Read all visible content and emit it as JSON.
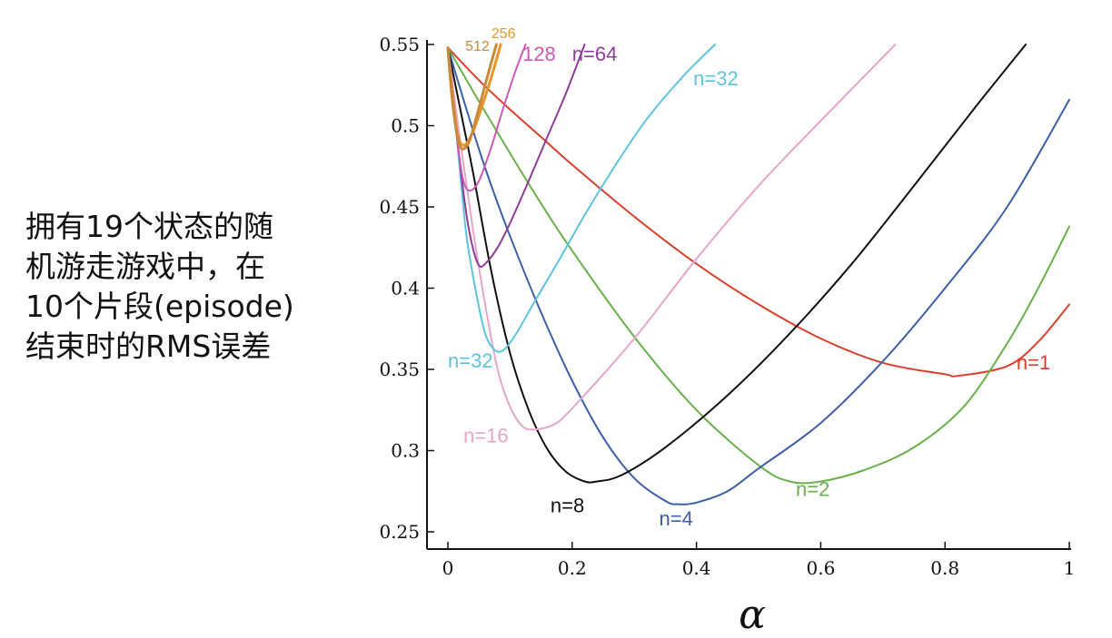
{
  "caption": {
    "line1": "拥有19个状态的随",
    "line2": "机游走游戏中，在",
    "line3": "10个片段(episode)",
    "line4": "结束时的RMS误差"
  },
  "chart_data": {
    "type": "line",
    "title": "",
    "xlabel": "α",
    "ylabel": "",
    "xlim": [
      0,
      1
    ],
    "ylim": [
      0.24,
      0.55
    ],
    "xticks": [
      0,
      0.2,
      0.4,
      0.6,
      0.8,
      1
    ],
    "xtick_labels": [
      "0",
      "0.2",
      "0.4",
      "0.6",
      "0.8",
      "1"
    ],
    "yticks": [
      0.25,
      0.3,
      0.35,
      0.4,
      0.45,
      0.5,
      0.55
    ],
    "ytick_labels": [
      "0.25",
      "0.3",
      "0.35",
      "0.4",
      "0.45",
      "0.5",
      "0.55"
    ],
    "series": [
      {
        "name": "n=1",
        "label": "n=1",
        "color": "#d9412e",
        "points": [
          [
            0,
            0.548
          ],
          [
            0.05,
            0.528
          ],
          [
            0.1,
            0.51
          ],
          [
            0.15,
            0.493
          ],
          [
            0.2,
            0.476
          ],
          [
            0.3,
            0.444
          ],
          [
            0.4,
            0.415
          ],
          [
            0.5,
            0.39
          ],
          [
            0.6,
            0.369
          ],
          [
            0.7,
            0.354
          ],
          [
            0.8,
            0.347
          ],
          [
            0.82,
            0.346
          ],
          [
            0.9,
            0.352
          ],
          [
            0.95,
            0.367
          ],
          [
            1,
            0.39
          ]
        ]
      },
      {
        "name": "n=2",
        "label": "n=2",
        "color": "#6ab04c",
        "points": [
          [
            0,
            0.548
          ],
          [
            0.05,
            0.515
          ],
          [
            0.1,
            0.483
          ],
          [
            0.15,
            0.452
          ],
          [
            0.2,
            0.423
          ],
          [
            0.3,
            0.37
          ],
          [
            0.4,
            0.325
          ],
          [
            0.5,
            0.291
          ],
          [
            0.55,
            0.281
          ],
          [
            0.6,
            0.281
          ],
          [
            0.67,
            0.288
          ],
          [
            0.75,
            0.302
          ],
          [
            0.83,
            0.327
          ],
          [
            0.9,
            0.366
          ],
          [
            0.95,
            0.4
          ],
          [
            1,
            0.438
          ]
        ]
      },
      {
        "name": "n=4",
        "label": "n=4",
        "color": "#3d5fa8",
        "points": [
          [
            0,
            0.548
          ],
          [
            0.03,
            0.51
          ],
          [
            0.06,
            0.474
          ],
          [
            0.1,
            0.432
          ],
          [
            0.15,
            0.385
          ],
          [
            0.2,
            0.343
          ],
          [
            0.25,
            0.308
          ],
          [
            0.3,
            0.283
          ],
          [
            0.35,
            0.269
          ],
          [
            0.37,
            0.267
          ],
          [
            0.4,
            0.268
          ],
          [
            0.45,
            0.275
          ],
          [
            0.5,
            0.289
          ],
          [
            0.6,
            0.317
          ],
          [
            0.7,
            0.355
          ],
          [
            0.8,
            0.4
          ],
          [
            0.9,
            0.45
          ],
          [
            1,
            0.516
          ]
        ]
      },
      {
        "name": "n=8",
        "label": "n=8",
        "color": "#111111",
        "points": [
          [
            0,
            0.548
          ],
          [
            0.02,
            0.51
          ],
          [
            0.04,
            0.472
          ],
          [
            0.07,
            0.41
          ],
          [
            0.1,
            0.36
          ],
          [
            0.13,
            0.325
          ],
          [
            0.16,
            0.301
          ],
          [
            0.19,
            0.287
          ],
          [
            0.22,
            0.281
          ],
          [
            0.24,
            0.281
          ],
          [
            0.28,
            0.285
          ],
          [
            0.35,
            0.302
          ],
          [
            0.45,
            0.334
          ],
          [
            0.55,
            0.372
          ],
          [
            0.65,
            0.415
          ],
          [
            0.75,
            0.463
          ],
          [
            0.85,
            0.512
          ],
          [
            0.93,
            0.55
          ]
        ]
      },
      {
        "name": "n=16",
        "label": "n=16",
        "color": "#e5a6cb",
        "points": [
          [
            0,
            0.548
          ],
          [
            0.02,
            0.49
          ],
          [
            0.04,
            0.437
          ],
          [
            0.06,
            0.39
          ],
          [
            0.08,
            0.35
          ],
          [
            0.1,
            0.327
          ],
          [
            0.12,
            0.315
          ],
          [
            0.14,
            0.313
          ],
          [
            0.17,
            0.316
          ],
          [
            0.2,
            0.326
          ],
          [
            0.3,
            0.369
          ],
          [
            0.4,
            0.418
          ],
          [
            0.5,
            0.463
          ],
          [
            0.6,
            0.503
          ],
          [
            0.72,
            0.55
          ]
        ]
      },
      {
        "name": "n=32",
        "label": "n=32",
        "color": "#5cc4dd",
        "points": [
          [
            0,
            0.548
          ],
          [
            0.01,
            0.51
          ],
          [
            0.02,
            0.47
          ],
          [
            0.03,
            0.432
          ],
          [
            0.045,
            0.398
          ],
          [
            0.06,
            0.372
          ],
          [
            0.075,
            0.362
          ],
          [
            0.09,
            0.362
          ],
          [
            0.11,
            0.372
          ],
          [
            0.14,
            0.392
          ],
          [
            0.18,
            0.418
          ],
          [
            0.22,
            0.445
          ],
          [
            0.27,
            0.476
          ],
          [
            0.32,
            0.504
          ],
          [
            0.38,
            0.531
          ],
          [
            0.43,
            0.55
          ]
        ]
      },
      {
        "name": "n=64",
        "label": "n=64",
        "color": "#8e3d97",
        "points": [
          [
            0,
            0.548
          ],
          [
            0.01,
            0.512
          ],
          [
            0.02,
            0.475
          ],
          [
            0.03,
            0.445
          ],
          [
            0.04,
            0.425
          ],
          [
            0.05,
            0.414
          ],
          [
            0.06,
            0.415
          ],
          [
            0.08,
            0.425
          ],
          [
            0.1,
            0.44
          ],
          [
            0.13,
            0.466
          ],
          [
            0.16,
            0.493
          ],
          [
            0.19,
            0.52
          ],
          [
            0.22,
            0.55
          ]
        ]
      },
      {
        "name": "n=128",
        "label": "128",
        "color": "#cc5ab5",
        "points": [
          [
            0,
            0.548
          ],
          [
            0.008,
            0.52
          ],
          [
            0.016,
            0.488
          ],
          [
            0.025,
            0.466
          ],
          [
            0.035,
            0.46
          ],
          [
            0.05,
            0.466
          ],
          [
            0.07,
            0.487
          ],
          [
            0.09,
            0.512
          ],
          [
            0.11,
            0.535
          ],
          [
            0.125,
            0.55
          ]
        ]
      },
      {
        "name": "n=256",
        "label": "256",
        "color": "#e8952a",
        "points": [
          [
            0,
            0.548
          ],
          [
            0.008,
            0.516
          ],
          [
            0.016,
            0.494
          ],
          [
            0.026,
            0.488
          ],
          [
            0.04,
            0.496
          ],
          [
            0.055,
            0.512
          ],
          [
            0.07,
            0.53
          ],
          [
            0.085,
            0.55
          ]
        ]
      },
      {
        "name": "n=512",
        "label": "512",
        "color": "#c88a3a",
        "points": [
          [
            0,
            0.548
          ],
          [
            0.006,
            0.52
          ],
          [
            0.014,
            0.496
          ],
          [
            0.022,
            0.486
          ],
          [
            0.034,
            0.49
          ],
          [
            0.048,
            0.508
          ],
          [
            0.062,
            0.528
          ],
          [
            0.078,
            0.55
          ]
        ]
      }
    ],
    "annotations": [
      {
        "text": "n=1",
        "series": "n=1",
        "x": 0.915,
        "y": 0.35,
        "color": "#d9412e"
      },
      {
        "text": "n=2",
        "series": "n=2",
        "x": 0.56,
        "y": 0.272,
        "color": "#6ab04c"
      },
      {
        "text": "n=4",
        "series": "n=4",
        "x": 0.34,
        "y": 0.254,
        "color": "#3d5fa8"
      },
      {
        "text": "n=8",
        "series": "n=8",
        "x": 0.165,
        "y": 0.262,
        "color": "#111111"
      },
      {
        "text": "n=16",
        "series": "n=16",
        "x": 0.025,
        "y": 0.305,
        "color": "#e5a6cb"
      },
      {
        "text": "n=32",
        "series": "n=32",
        "x": 0.0,
        "y": 0.351,
        "color": "#5cc4dd"
      },
      {
        "text": "n=32",
        "series": "n=32",
        "x": 0.395,
        "y": 0.525,
        "color": "#5cc4dd"
      },
      {
        "text": "n=64",
        "series": "n=64",
        "x": 0.2,
        "y": 0.54,
        "color": "#8e3d97"
      },
      {
        "text": "128",
        "series": "n=128",
        "x": 0.12,
        "y": 0.54,
        "color": "#cc5ab5"
      },
      {
        "text": "256",
        "series": "n=256",
        "x": 0.07,
        "y": 0.554,
        "color": "#e8952a"
      },
      {
        "text": "512",
        "series": "n=512",
        "x": 0.028,
        "y": 0.546,
        "color": "#c88a3a"
      }
    ]
  }
}
